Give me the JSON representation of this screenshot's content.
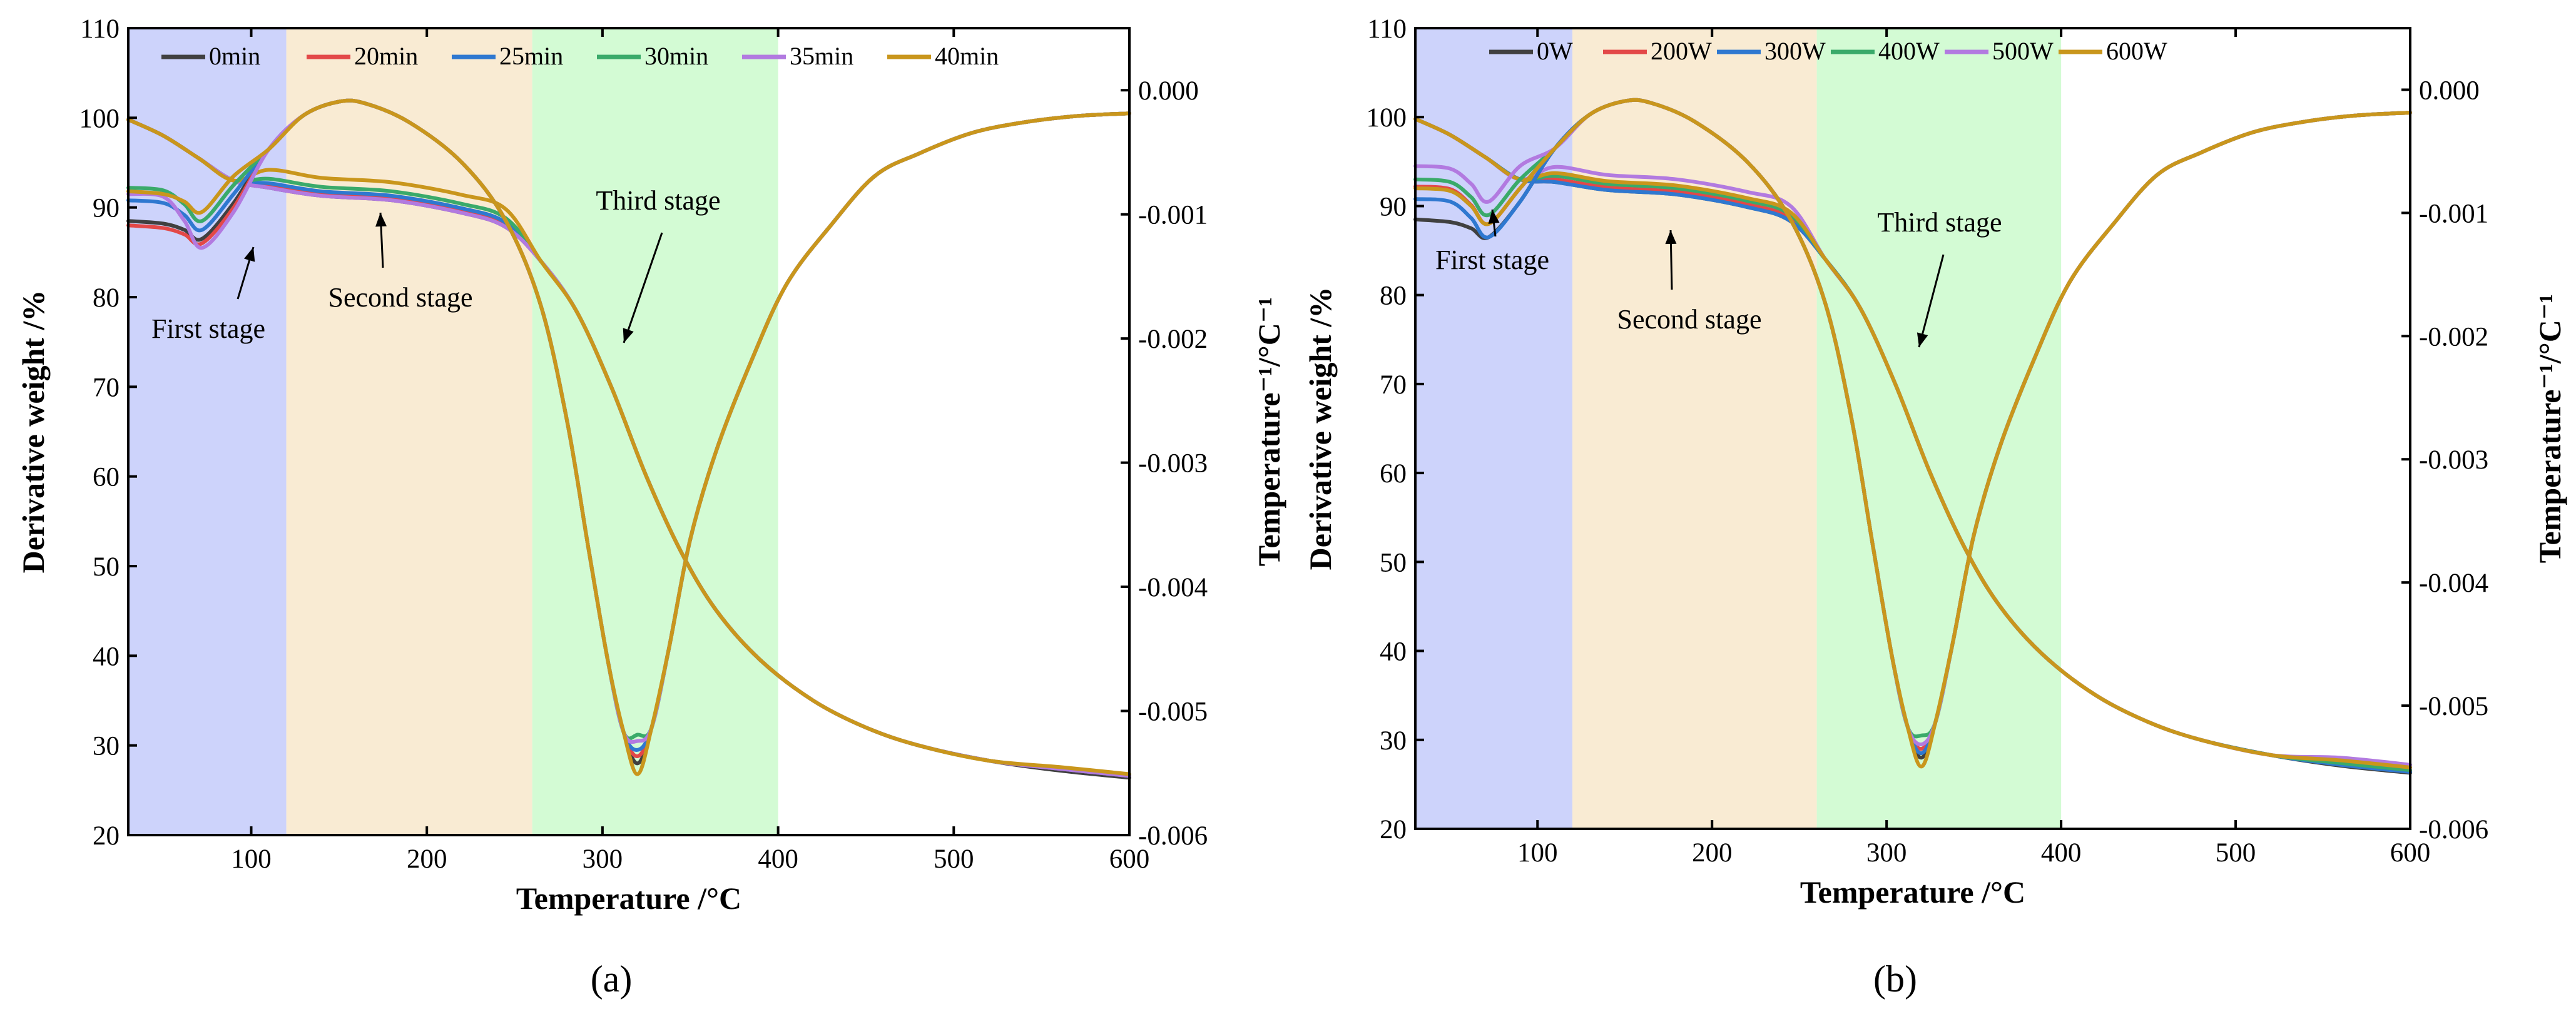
{
  "chart_data": [
    {
      "type": "line",
      "panel_label": "(a)",
      "xlabel": "Temperature /°C",
      "ylabel": "Derivative weight /%",
      "y2label": "Temperature⁻¹/°C⁻¹",
      "xlim": [
        30,
        600
      ],
      "ylim": [
        20,
        110
      ],
      "y2lim": [
        -0.006,
        0.0005
      ],
      "xticks": [
        "100",
        "200",
        "300",
        "400",
        "500",
        "600"
      ],
      "yticks": [
        "20",
        "30",
        "40",
        "50",
        "60",
        "70",
        "80",
        "90",
        "100",
        "110"
      ],
      "y2ticks": [
        "0.000",
        "-0.001",
        "-0.002",
        "-0.003",
        "-0.004",
        "-0.005",
        "-0.006"
      ],
      "stage_regions": [
        {
          "name": "First stage",
          "range": [
            30,
            120
          ],
          "color": "#cdd3fb"
        },
        {
          "name": "Second stage",
          "range": [
            120,
            260
          ],
          "color": "#f9ebd3"
        },
        {
          "name": "Third stage",
          "range": [
            260,
            400
          ],
          "color": "#d3fbd4"
        }
      ],
      "annotations": [
        "First stage",
        "Second stage",
        "Third stage"
      ],
      "legend_position": "top",
      "series": [
        {
          "name": "0min",
          "color": "#404040",
          "tg_plateau": 91.0,
          "tg_end": 26.4,
          "dtg_initial": 88.5,
          "dtg_shoulder": 86.5,
          "dtg_min": 28.0
        },
        {
          "name": "20min",
          "color": "#e34848",
          "tg_plateau": 91.2,
          "tg_end": 26.6,
          "dtg_initial": 88.0,
          "dtg_shoulder": 86.0,
          "dtg_min": 28.8
        },
        {
          "name": "25min",
          "color": "#2f78d0",
          "tg_plateau": 91.5,
          "tg_end": 26.6,
          "dtg_initial": 90.8,
          "dtg_shoulder": 87.5,
          "dtg_min": 29.5
        },
        {
          "name": "30min",
          "color": "#3aaa6a",
          "tg_plateau": 92.0,
          "tg_end": 26.7,
          "dtg_initial": 92.2,
          "dtg_shoulder": 88.5,
          "dtg_min": 31.2
        },
        {
          "name": "35min",
          "color": "#b27ae0",
          "tg_plateau": 91.0,
          "tg_end": 26.6,
          "dtg_initial": 91.5,
          "dtg_shoulder": 85.5,
          "dtg_min": 30.5
        },
        {
          "name": "40min",
          "color": "#c9961c",
          "tg_plateau": 93.0,
          "tg_end": 26.8,
          "dtg_initial": 91.8,
          "dtg_shoulder": 89.5,
          "dtg_min": 26.8
        }
      ]
    },
    {
      "type": "line",
      "panel_label": "(b)",
      "xlabel": "Temperature /°C",
      "ylabel": "Derivative weight /%",
      "y2label": "Temperature⁻¹/°C⁻¹",
      "xlim": [
        30,
        600
      ],
      "ylim": [
        20,
        110
      ],
      "y2lim": [
        -0.006,
        0.0005
      ],
      "xticks": [
        "100",
        "200",
        "300",
        "400",
        "500",
        "600"
      ],
      "yticks": [
        "20",
        "30",
        "40",
        "50",
        "60",
        "70",
        "80",
        "90",
        "100",
        "110"
      ],
      "y2ticks": [
        "0.000",
        "-0.001",
        "-0.002",
        "-0.003",
        "-0.004",
        "-0.005",
        "-0.006"
      ],
      "stage_regions": [
        {
          "name": "First stage",
          "range": [
            30,
            120
          ],
          "color": "#cdd3fb"
        },
        {
          "name": "Second stage",
          "range": [
            120,
            260
          ],
          "color": "#f9ebd3"
        },
        {
          "name": "Third stage",
          "range": [
            260,
            400
          ],
          "color": "#d3fbd4"
        }
      ],
      "annotations": [
        "First stage",
        "Second stage",
        "Third stage"
      ],
      "legend_position": "top",
      "series": [
        {
          "name": "0W",
          "color": "#404040",
          "tg_plateau": 91.5,
          "tg_end": 26.3,
          "dtg_initial": 88.5,
          "dtg_shoulder": 86.5,
          "dtg_min": 28.0
        },
        {
          "name": "200W",
          "color": "#e34848",
          "tg_plateau": 91.8,
          "tg_end": 26.5,
          "dtg_initial": 92.2,
          "dtg_shoulder": 88.0,
          "dtg_min": 29.0
        },
        {
          "name": "300W",
          "color": "#2f78d0",
          "tg_plateau": 91.5,
          "tg_end": 26.4,
          "dtg_initial": 90.8,
          "dtg_shoulder": 86.5,
          "dtg_min": 28.5
        },
        {
          "name": "400W",
          "color": "#3aaa6a",
          "tg_plateau": 92.2,
          "tg_end": 26.6,
          "dtg_initial": 93.0,
          "dtg_shoulder": 89.0,
          "dtg_min": 30.5
        },
        {
          "name": "500W",
          "color": "#b27ae0",
          "tg_plateau": 93.2,
          "tg_end": 27.2,
          "dtg_initial": 94.5,
          "dtg_shoulder": 90.5,
          "dtg_min": 29.5
        },
        {
          "name": "600W",
          "color": "#c9961c",
          "tg_plateau": 92.5,
          "tg_end": 26.9,
          "dtg_initial": 92.0,
          "dtg_shoulder": 88.0,
          "dtg_min": 27.0
        }
      ]
    }
  ]
}
